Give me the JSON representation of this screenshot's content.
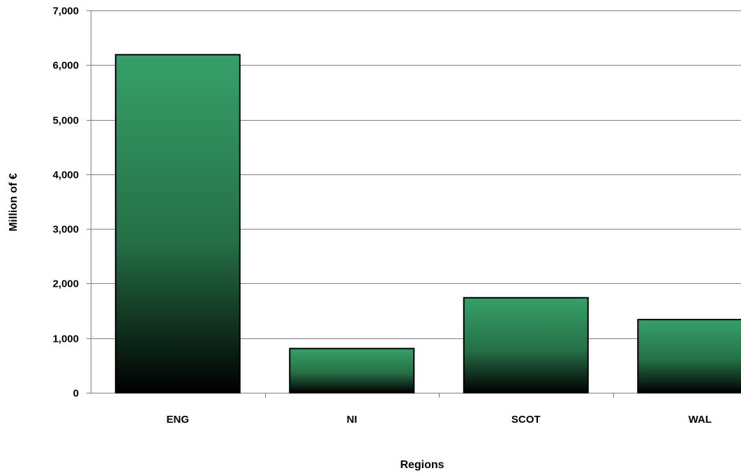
{
  "chart_data": {
    "type": "bar",
    "title": "",
    "xlabel": "Regions",
    "ylabel": "Million of €",
    "categories": [
      "ENG",
      "NI",
      "SCOT",
      "WAL"
    ],
    "values": [
      6190,
      810,
      1740,
      1340
    ],
    "ylim": [
      0,
      7000
    ],
    "yticks": [
      0,
      1000,
      2000,
      3000,
      4000,
      5000,
      6000,
      7000
    ],
    "ytick_labels": [
      "0",
      "1,000",
      "2,000",
      "3,000",
      "4,000",
      "5,000",
      "6,000",
      "7,000"
    ],
    "grid": true,
    "legend": "none",
    "colors": {
      "bar_top": "#36a06a",
      "bar_mid": "#257046",
      "bar_bottom": "#000000",
      "bar_stroke": "#000000",
      "gridline": "#808080",
      "axis": "#808080"
    }
  }
}
